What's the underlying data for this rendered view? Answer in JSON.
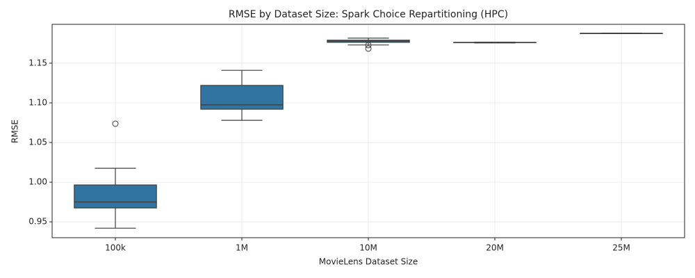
{
  "chart_data": {
    "type": "box",
    "title": "RMSE by Dataset Size: Spark Choice Repartitioning (HPC)",
    "x_label": "MovieLens Dataset Size",
    "y_label": "RMSE",
    "categories": [
      "100k",
      "1M",
      "10M",
      "20M",
      "25M"
    ],
    "color": "#3274a1",
    "ylim": [
      0.93,
      1.199
    ],
    "yticks": [
      0.95,
      1.0,
      1.05,
      1.1,
      1.15
    ],
    "ytick_labels": [
      "0.95",
      "1.00",
      "1.05",
      "1.10",
      "1.15"
    ],
    "grid": true,
    "boxes": [
      {
        "low": 0.942,
        "q1": 0.9675,
        "median": 0.975,
        "q3": 0.9965,
        "high": 1.0175,
        "outliers": [
          1.0737
        ]
      },
      {
        "low": 1.078,
        "q1": 1.092,
        "median": 1.0975,
        "q3": 1.122,
        "high": 1.141,
        "outliers": []
      },
      {
        "low": 1.173,
        "q1": 1.1763,
        "median": 1.178,
        "q3": 1.179,
        "high": 1.1816,
        "outliers": [
          1.1728,
          1.1684
        ]
      },
      {
        "low": 1.1755,
        "q1": 1.1758,
        "median": 1.176,
        "q3": 1.1763,
        "high": 1.1765,
        "outliers": []
      },
      {
        "low": 1.1874,
        "q1": 1.1875,
        "median": 1.1876,
        "q3": 1.1877,
        "high": 1.1878,
        "outliers": []
      }
    ]
  }
}
